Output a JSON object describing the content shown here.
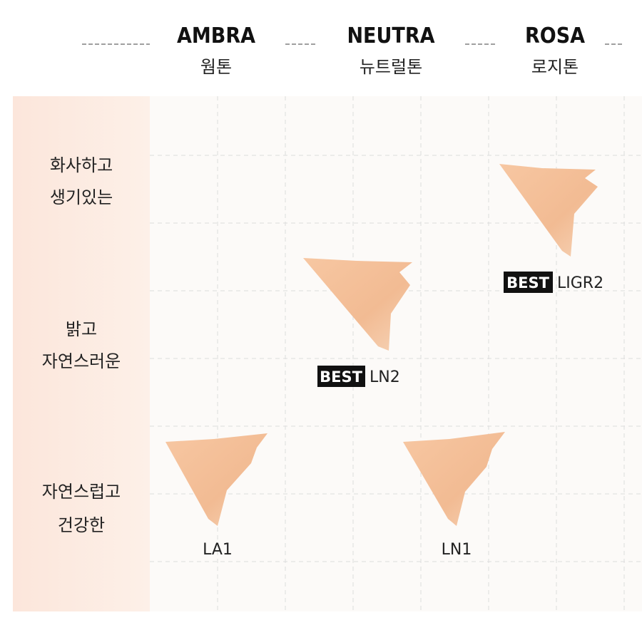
{
  "columns": [
    {
      "name": "AMBRA",
      "korean": "웜톤"
    },
    {
      "name": "NEUTRA",
      "korean": "뉴트럴톤"
    },
    {
      "name": "ROSA",
      "korean": "로지톤"
    }
  ],
  "rows": [
    {
      "line1": "화사하고",
      "line2": "생기있는"
    },
    {
      "line1": "밝고",
      "line2": "자연스러운"
    },
    {
      "line1": "자연스럽고",
      "line2": "건강한"
    }
  ],
  "swatches": [
    {
      "badge": "BEST",
      "code": "LIGR2"
    },
    {
      "badge": "BEST",
      "code": "LN2"
    },
    {
      "code": "LA1"
    },
    {
      "code": "LN1"
    }
  ]
}
